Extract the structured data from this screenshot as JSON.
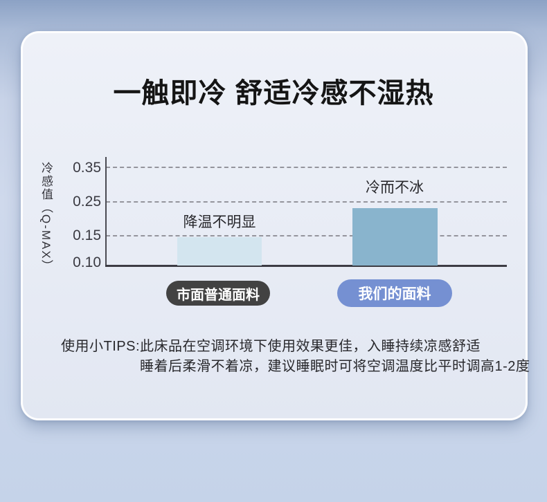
{
  "page": {
    "title": "一触即冷 舒适冷感不湿热"
  },
  "chart_data": {
    "type": "bar",
    "title": "",
    "xlabel": "",
    "ylabel": "冷感值（Q-MAX）",
    "ytick_labels": [
      "0.35",
      "0.25",
      "0.15",
      "0.10"
    ],
    "ylim": [
      0.1,
      0.38
    ],
    "grid": "horizontal-dashed",
    "legend_position": "none",
    "categories": [
      "市面普通面料",
      "我们的面料"
    ],
    "values": [
      0.145,
      0.23
    ],
    "bar_annotations": [
      "降温不明显",
      "冷而不冰"
    ],
    "bar_colors": [
      "#d3e5ef",
      "#89b4cd"
    ],
    "category_badge_colors": [
      "#424242",
      "#7590d2"
    ]
  },
  "tips": {
    "prefix": "使用小TIPS:",
    "line1": "此床品在空调环境下使用效果更佳，入睡持续凉感舒适",
    "line2": "睡着后柔滑不着凉，建议睡眠时可将空调温度比平时调高1-2度"
  },
  "colors": {
    "background_top": "#8ca2c5",
    "background_bottom": "#c5d3e9",
    "card_background": "#e9edf6",
    "title_text": "#151515",
    "bar_ordinary": "#d3e5ef",
    "bar_ours": "#89b4cd",
    "badge_ordinary": "#424242",
    "badge_ours": "#7590d2"
  }
}
